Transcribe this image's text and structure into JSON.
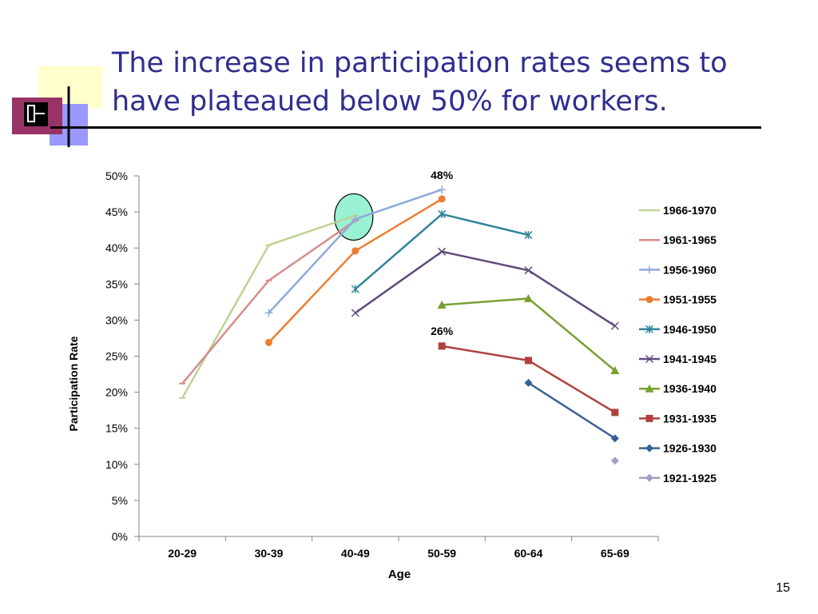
{
  "slide": {
    "title": "The increase in participation rates seems to have plateaued below 50% for workers.",
    "page_number": "15"
  },
  "chart_data": {
    "type": "line",
    "xlabel": "Age",
    "ylabel": "Participation Rate",
    "categories": [
      "20-29",
      "30-39",
      "40-49",
      "50-59",
      "60-64",
      "65-69"
    ],
    "ylim": [
      0,
      0.5
    ],
    "yticks": [
      "0%",
      "5%",
      "10%",
      "15%",
      "20%",
      "25%",
      "30%",
      "35%",
      "40%",
      "45%",
      "50%"
    ],
    "grid": false,
    "legend_position": "right",
    "annotations": [
      {
        "text": "48%",
        "category": "50-59",
        "value": 0.48,
        "position": "above"
      },
      {
        "text": "26%",
        "category": "50-59",
        "value": 0.264,
        "position": "above"
      }
    ],
    "highlight": {
      "category": "40-49",
      "value": 0.443,
      "color": "#99F2D1"
    },
    "series": [
      {
        "name": "1966-1970",
        "color": "#9BBB59",
        "lighten": true,
        "marker": "dash",
        "values": [
          0.192,
          0.404,
          0.445,
          null,
          null,
          null
        ]
      },
      {
        "name": "1961-1965",
        "color": "#C0504D",
        "lighten": true,
        "marker": "dash",
        "values": [
          0.212,
          0.355,
          0.438,
          null,
          null,
          null
        ]
      },
      {
        "name": "1956-1960",
        "color": "#8EA9DB",
        "marker": "plus",
        "values": [
          null,
          0.31,
          0.44,
          0.481,
          null,
          null
        ]
      },
      {
        "name": "1951-1955",
        "color": "#ED7D31",
        "marker": "circle",
        "values": [
          null,
          0.269,
          0.396,
          0.468,
          null,
          null
        ]
      },
      {
        "name": "1946-1950",
        "color": "#31859C",
        "marker": "star",
        "values": [
          null,
          null,
          0.343,
          0.447,
          0.418,
          null
        ]
      },
      {
        "name": "1941-1945",
        "color": "#604A7B",
        "marker": "x",
        "values": [
          null,
          null,
          0.31,
          0.395,
          0.369,
          0.292
        ]
      },
      {
        "name": "1936-1940",
        "color": "#77A033",
        "marker": "triangle",
        "values": [
          null,
          null,
          null,
          0.321,
          0.33,
          0.23
        ]
      },
      {
        "name": "1931-1935",
        "color": "#B0403D",
        "marker": "square",
        "values": [
          null,
          null,
          null,
          0.264,
          0.244,
          0.172
        ]
      },
      {
        "name": "1926-1930",
        "color": "#366092",
        "marker": "diamond",
        "values": [
          null,
          null,
          null,
          null,
          0.213,
          0.136
        ]
      },
      {
        "name": "1921-1925",
        "color": "#A79CC6",
        "marker": "diamond",
        "values": [
          null,
          null,
          null,
          null,
          null,
          0.105
        ]
      }
    ]
  }
}
